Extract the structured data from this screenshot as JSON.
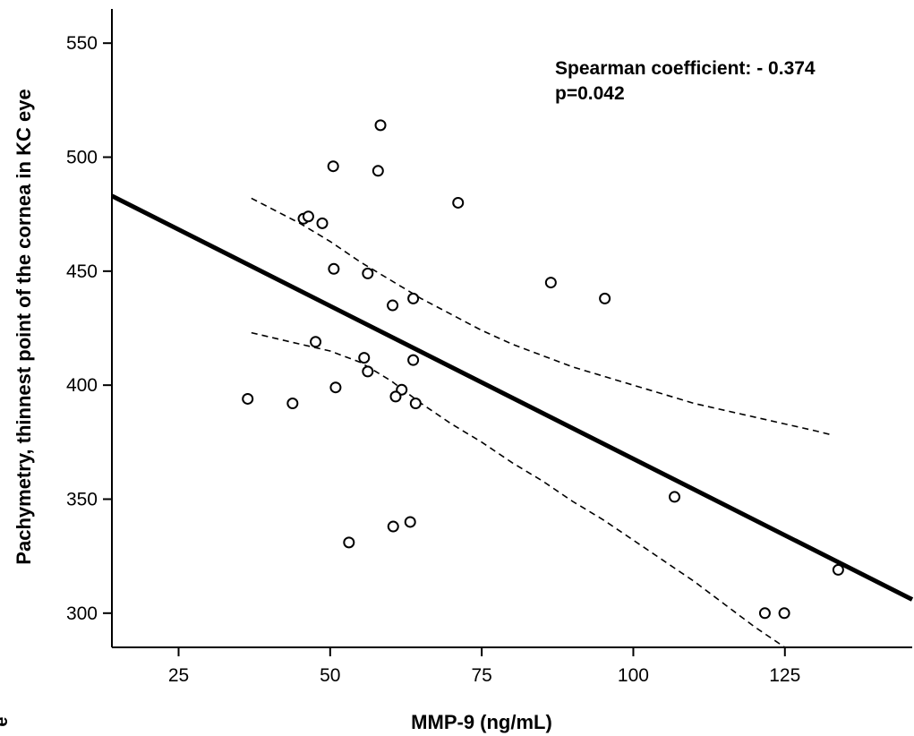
{
  "chart_data": {
    "type": "scatter",
    "xlabel": "MMP-9 (ng/mL)",
    "ylabel": "Pachymetry, thinnest point of the cornea in KC eye",
    "xlim": [
      14,
      146
    ],
    "ylim": [
      285,
      565
    ],
    "xticks": [
      25,
      50,
      75,
      100,
      125
    ],
    "yticks": [
      300,
      350,
      400,
      450,
      500,
      550
    ],
    "grid": false,
    "annotations": [
      "Spearman coefficient:  - 0.374",
      "p=0.042"
    ],
    "edge_text": "e",
    "points": [
      {
        "x": 58.3,
        "y": 514
      },
      {
        "x": 50.5,
        "y": 496
      },
      {
        "x": 57.9,
        "y": 494
      },
      {
        "x": 71.1,
        "y": 480
      },
      {
        "x": 45.6,
        "y": 473
      },
      {
        "x": 46.4,
        "y": 474
      },
      {
        "x": 48.7,
        "y": 471
      },
      {
        "x": 50.6,
        "y": 451
      },
      {
        "x": 56.2,
        "y": 449
      },
      {
        "x": 86.4,
        "y": 445
      },
      {
        "x": 95.3,
        "y": 438
      },
      {
        "x": 63.7,
        "y": 438
      },
      {
        "x": 60.3,
        "y": 435
      },
      {
        "x": 47.6,
        "y": 419
      },
      {
        "x": 55.6,
        "y": 412
      },
      {
        "x": 63.7,
        "y": 411
      },
      {
        "x": 56.2,
        "y": 406
      },
      {
        "x": 50.9,
        "y": 399
      },
      {
        "x": 61.8,
        "y": 398
      },
      {
        "x": 60.8,
        "y": 395
      },
      {
        "x": 36.4,
        "y": 394
      },
      {
        "x": 43.8,
        "y": 392
      },
      {
        "x": 64.1,
        "y": 392
      },
      {
        "x": 106.8,
        "y": 351
      },
      {
        "x": 63.2,
        "y": 340
      },
      {
        "x": 60.4,
        "y": 338
      },
      {
        "x": 53.1,
        "y": 331
      },
      {
        "x": 133.8,
        "y": 319
      },
      {
        "x": 121.7,
        "y": 300
      },
      {
        "x": 124.9,
        "y": 300
      }
    ],
    "regression_line": {
      "x": [
        14,
        146
      ],
      "y": [
        483,
        306
      ]
    },
    "ci_upper": {
      "x": [
        37,
        45,
        50,
        55,
        60,
        65,
        70,
        75,
        80,
        85,
        90,
        95,
        100,
        105,
        110,
        115,
        120,
        125,
        130,
        133
      ],
      "y": [
        482,
        471,
        463,
        454,
        446,
        438,
        431,
        424,
        418,
        413,
        408,
        404,
        400,
        396,
        392,
        389,
        386,
        383,
        380,
        378
      ]
    },
    "ci_lower": {
      "x": [
        37,
        45,
        50,
        55,
        60,
        65,
        70,
        75,
        80,
        85,
        90,
        95,
        100,
        105,
        110,
        115,
        120,
        125
      ],
      "y": [
        423,
        418,
        415,
        410,
        402,
        392,
        383,
        375,
        366,
        358,
        349,
        341,
        332,
        323,
        314,
        304,
        294,
        285
      ]
    }
  }
}
